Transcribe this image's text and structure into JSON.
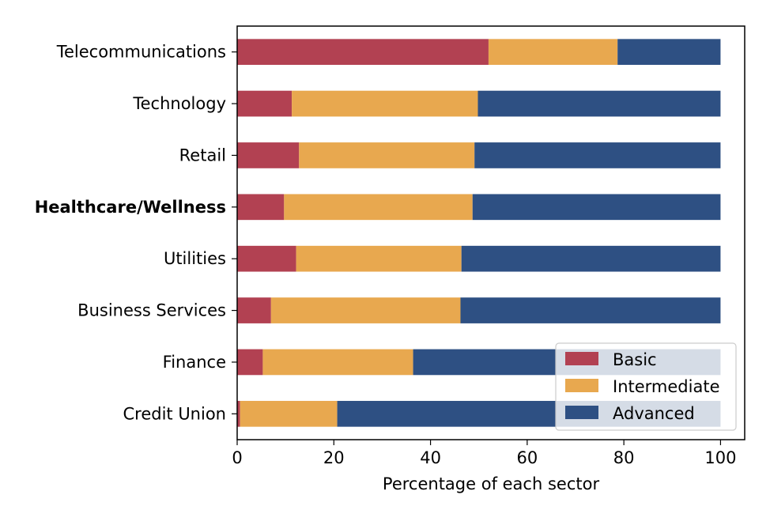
{
  "chart_data": {
    "type": "bar",
    "orientation": "horizontal",
    "stacked": true,
    "categories": [
      "Telecommunications",
      "Technology",
      "Retail",
      "Healthcare/Wellness",
      "Utilities",
      "Business Services",
      "Finance",
      "Credit Union"
    ],
    "highlighted_category": "Healthcare/Wellness",
    "series": [
      {
        "name": "Basic",
        "color": "#b24152",
        "values": [
          52.0,
          11.3,
          12.8,
          9.7,
          12.2,
          7.0,
          5.3,
          0.6
        ]
      },
      {
        "name": "Intermediate",
        "color": "#e8a84f",
        "values": [
          26.7,
          38.5,
          36.3,
          39.0,
          34.2,
          39.2,
          31.1,
          20.1
        ]
      },
      {
        "name": "Advanced",
        "color": "#2e5083",
        "values": [
          21.3,
          50.2,
          50.9,
          51.3,
          53.6,
          53.8,
          63.6,
          79.3
        ]
      }
    ],
    "x_ticks": [
      "0",
      "20",
      "40",
      "60",
      "80",
      "100"
    ],
    "xlim": [
      0,
      105
    ],
    "xlabel": "Percentage of each sector",
    "ylabel": "",
    "title": "",
    "grid": false,
    "legend_position": "lower-right"
  }
}
